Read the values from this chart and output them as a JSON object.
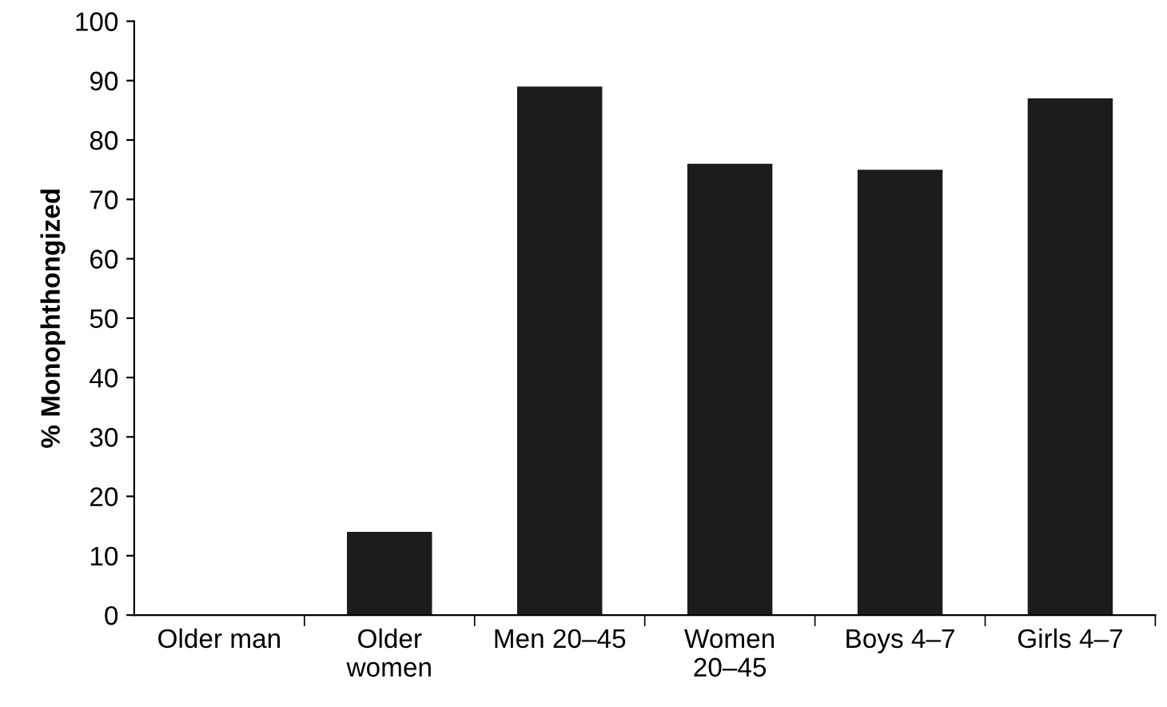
{
  "chart_data": {
    "type": "bar",
    "ylabel": "% Monophthongized",
    "categories": [
      "Older man",
      "Older\nwomen",
      "Men 20–45",
      "Women\n20–45",
      "Boys 4–7",
      "Girls 4–7"
    ],
    "values": [
      0,
      14,
      89,
      76,
      75,
      87
    ],
    "color": "#1c1c1c",
    "ylim": [
      0,
      100
    ],
    "yticks": [
      0,
      10,
      20,
      30,
      40,
      50,
      60,
      70,
      80,
      90,
      100
    ],
    "grid": false
  }
}
